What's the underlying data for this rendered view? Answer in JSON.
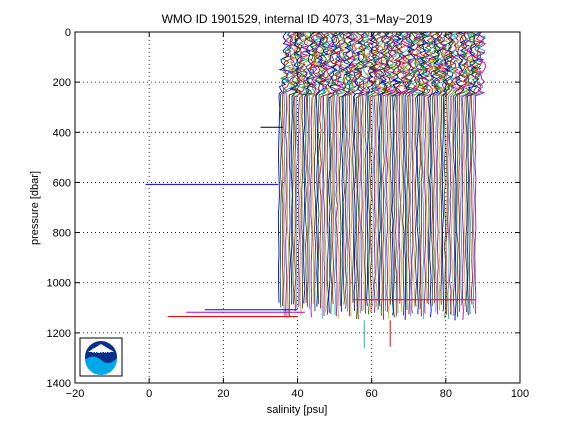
{
  "chart_data": {
    "type": "line",
    "title": "WMO ID 1901529, internal ID 4073, 31−May−2019",
    "xlabel": "salinity [psu]",
    "ylabel": "pressure [dbar]",
    "xlim": [
      -20,
      100
    ],
    "ylim": [
      0,
      1400
    ],
    "y_reversed": true,
    "grid": true,
    "x_ticks": [
      "−20",
      "0",
      "20",
      "40",
      "60",
      "80",
      "100"
    ],
    "y_ticks": [
      "0",
      "200",
      "400",
      "600",
      "800",
      "1000",
      "1200",
      "1400"
    ],
    "profile_offset_start": 35,
    "profile_offset_end": 88,
    "profile_count": 110,
    "series_colors": [
      "#0000ff",
      "#008000",
      "#ff0000",
      "#00bfbf",
      "#bf00bf",
      "#bfbf00",
      "#404040"
    ],
    "outlier_segments": [
      {
        "x": [
          -1,
          34.8
        ],
        "y": [
          608,
          608
        ],
        "color": "#0000ff"
      },
      {
        "x": [
          30,
          36
        ],
        "y": [
          380,
          380
        ],
        "color": "#000000"
      },
      {
        "x": [
          15,
          40
        ],
        "y": [
          1108,
          1108
        ],
        "color": "#0000ff"
      },
      {
        "x": [
          10,
          42
        ],
        "y": [
          1118,
          1118
        ],
        "color": "#bf00bf"
      },
      {
        "x": [
          5,
          40
        ],
        "y": [
          1135,
          1135
        ],
        "color": "#ff0000"
      },
      {
        "x": [
          55,
          88
        ],
        "y": [
          1068,
          1068
        ],
        "color": "#ff0000"
      },
      {
        "x": [
          58,
          58
        ],
        "y": [
          1150,
          1260
        ],
        "color": "#00bfbf"
      },
      {
        "x": [
          65,
          65
        ],
        "y": [
          1150,
          1255
        ],
        "color": "#ff0000"
      }
    ]
  },
  "logo": {
    "text": "NOAA"
  },
  "colors": {
    "axis": "#000000",
    "background": "#ffffff",
    "logo_blue": "#0a2e8a",
    "logo_cyan": "#00a8e8"
  }
}
